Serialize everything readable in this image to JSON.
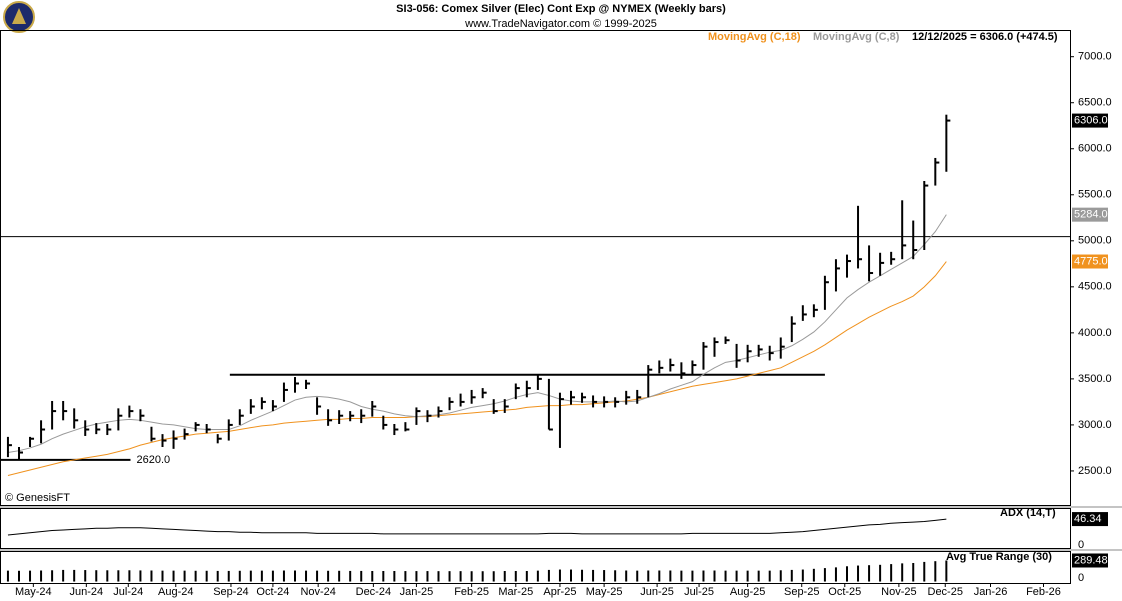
{
  "chart_data": {
    "type": "ohlc",
    "title": "SI3-056:  Comex Silver (Elec) Cont Exp @ NYMEX  (Weekly bars)",
    "subtitle": "www.TradeNavigator.com © 1999-2025",
    "legend_note": "12/12/2025 = 6306.0 (+474.5)",
    "source": "© GenesisFT",
    "x": [
      0,
      1,
      2,
      3,
      4,
      5,
      6,
      7,
      8,
      9,
      10,
      11,
      12,
      13,
      14,
      15,
      16,
      17,
      18,
      19,
      20,
      21,
      22,
      23,
      24,
      25,
      26,
      27,
      28,
      29,
      30,
      31,
      32,
      33,
      34,
      35,
      36,
      37,
      38,
      39,
      40,
      41,
      42,
      43,
      44,
      45,
      46,
      47,
      48,
      49,
      50,
      51,
      52,
      53,
      54,
      55,
      56,
      57,
      58,
      59,
      60,
      61,
      62,
      63,
      64,
      65,
      66,
      67,
      68,
      69,
      70,
      71,
      72,
      73,
      74,
      75,
      76,
      77,
      78,
      79,
      80,
      81,
      82,
      83,
      84,
      85
    ],
    "xlim": [
      -0.72,
      96.2
    ],
    "xticks": [
      {
        "value": 2.3,
        "label": "May-24"
      },
      {
        "value": 7.1,
        "label": "Jun-24"
      },
      {
        "value": 10.9,
        "label": "Jul-24"
      },
      {
        "value": 15.2,
        "label": "Aug-24"
      },
      {
        "value": 20.2,
        "label": "Sep-24"
      },
      {
        "value": 24.0,
        "label": "Oct-24"
      },
      {
        "value": 28.1,
        "label": "Nov-24"
      },
      {
        "value": 33.1,
        "label": "Dec-24"
      },
      {
        "value": 37.0,
        "label": "Jan-25"
      },
      {
        "value": 42.0,
        "label": "Feb-25"
      },
      {
        "value": 46.0,
        "label": "Mar-25"
      },
      {
        "value": 50.0,
        "label": "Apr-25"
      },
      {
        "value": 54.0,
        "label": "May-25"
      },
      {
        "value": 58.8,
        "label": "Jun-25"
      },
      {
        "value": 62.6,
        "label": "Jul-25"
      },
      {
        "value": 67.0,
        "label": "Aug-25"
      },
      {
        "value": 71.9,
        "label": "Sep-25"
      },
      {
        "value": 75.8,
        "label": "Oct-25"
      },
      {
        "value": 80.7,
        "label": "Nov-25"
      },
      {
        "value": 84.9,
        "label": "Dec-25"
      },
      {
        "value": 89.0,
        "label": "Jan-26"
      },
      {
        "value": 93.8,
        "label": "Feb-26"
      }
    ],
    "ylim": [
      2130,
      7290
    ],
    "yticks": [
      {
        "value": 2500,
        "label": "2500.0"
      },
      {
        "value": 3000,
        "label": "3000.0"
      },
      {
        "value": 3500,
        "label": "3500.0"
      },
      {
        "value": 4000,
        "label": "4000.0"
      },
      {
        "value": 4500,
        "label": "4500.0"
      },
      {
        "value": 5000,
        "label": "5000.0"
      },
      {
        "value": 5500,
        "label": "5500.0"
      },
      {
        "value": 6000,
        "label": "6000.0"
      },
      {
        "value": 6500,
        "label": "6500.0"
      },
      {
        "value": 7000,
        "label": "7000.0"
      }
    ],
    "price": {
      "color": "#000000",
      "tag": "6306.0",
      "high": [
        2870,
        2760,
        2870,
        3050,
        3260,
        3260,
        3180,
        3050,
        3020,
        3010,
        3180,
        3210,
        3170,
        2980,
        2900,
        2940,
        2960,
        3030,
        3010,
        2900,
        3060,
        3170,
        3280,
        3300,
        3270,
        3460,
        3520,
        3490,
        3300,
        3170,
        3160,
        3150,
        3170,
        3260,
        3100,
        3010,
        3030,
        3190,
        3160,
        3200,
        3300,
        3340,
        3380,
        3400,
        3280,
        3280,
        3450,
        3480,
        3550,
        3500,
        3350,
        3370,
        3350,
        3320,
        3310,
        3300,
        3370,
        3380,
        3650,
        3700,
        3720,
        3680,
        3700,
        3900,
        3950,
        3960,
        3880,
        3870,
        3870,
        3860,
        3950,
        4180,
        4300,
        4310,
        4620,
        4800,
        4850,
        5380,
        4950,
        4870,
        4880,
        5440,
        5220,
        5650,
        5900,
        6370
      ],
      "low": [
        2650,
        2620,
        2760,
        2800,
        2950,
        3050,
        2960,
        2880,
        2900,
        2890,
        2940,
        3080,
        3040,
        2820,
        2760,
        2740,
        2840,
        2930,
        2910,
        2800,
        2830,
        3000,
        3120,
        3170,
        3150,
        3250,
        3350,
        3390,
        3110,
        2990,
        3010,
        3040,
        3020,
        3090,
        2950,
        2890,
        2930,
        3000,
        3030,
        3080,
        3160,
        3200,
        3230,
        3290,
        3120,
        3130,
        3280,
        3300,
        3380,
        2950,
        2750,
        3220,
        3240,
        3190,
        3190,
        3190,
        3220,
        3230,
        3300,
        3560,
        3580,
        3500,
        3540,
        3600,
        3740,
        3880,
        3620,
        3680,
        3740,
        3700,
        3720,
        3900,
        4130,
        4170,
        4250,
        4450,
        4600,
        4700,
        4560,
        4620,
        4740,
        4800,
        4800,
        4900,
        5600,
        5750
      ],
      "close": [
        2780,
        2700,
        2850,
        2950,
        3150,
        3150,
        3050,
        2950,
        2950,
        2950,
        3100,
        3150,
        3100,
        2850,
        2830,
        2850,
        2900,
        3000,
        2950,
        2850,
        3000,
        3100,
        3200,
        3250,
        3200,
        3380,
        3450,
        3450,
        3200,
        3050,
        3100,
        3100,
        3100,
        3200,
        3000,
        2950,
        2950,
        3150,
        3100,
        3150,
        3250,
        3250,
        3300,
        3350,
        3150,
        3200,
        3400,
        3400,
        3500,
        2950,
        3280,
        3300,
        3300,
        3250,
        3250,
        3250,
        3300,
        3300,
        3600,
        3620,
        3650,
        3560,
        3650,
        3850,
        3900,
        3920,
        3700,
        3800,
        3820,
        3780,
        3850,
        4100,
        4200,
        4250,
        4550,
        4700,
        4780,
        4800,
        4650,
        4760,
        4800,
        4950,
        4900,
        5600,
        5850,
        6306
      ]
    },
    "series": [
      {
        "name": "MovingAvg (C,18)",
        "color": "#f0921e",
        "tag": "4775.0",
        "values": [
          2450,
          2480,
          2510,
          2540,
          2570,
          2600,
          2620,
          2640,
          2660,
          2680,
          2710,
          2740,
          2780,
          2810,
          2840,
          2860,
          2880,
          2900,
          2910,
          2920,
          2930,
          2950,
          2970,
          2990,
          3000,
          3020,
          3030,
          3040,
          3050,
          3060,
          3060,
          3070,
          3070,
          3080,
          3080,
          3080,
          3080,
          3090,
          3090,
          3100,
          3110,
          3120,
          3130,
          3140,
          3150,
          3160,
          3170,
          3190,
          3200,
          3210,
          3210,
          3220,
          3220,
          3230,
          3240,
          3250,
          3260,
          3280,
          3300,
          3330,
          3360,
          3390,
          3420,
          3440,
          3460,
          3480,
          3500,
          3530,
          3560,
          3590,
          3620,
          3680,
          3740,
          3800,
          3870,
          3950,
          4030,
          4100,
          4170,
          4230,
          4290,
          4340,
          4400,
          4500,
          4620,
          4775
        ]
      },
      {
        "name": "MovingAvg (C,8)",
        "color": "#9a9a9a",
        "tag": "5284.0",
        "values": [
          2700,
          2720,
          2750,
          2790,
          2850,
          2900,
          2940,
          2980,
          3010,
          3030,
          3050,
          3060,
          3050,
          3030,
          3010,
          3000,
          2980,
          2960,
          2950,
          2950,
          2950,
          2990,
          3050,
          3100,
          3150,
          3210,
          3270,
          3300,
          3310,
          3300,
          3280,
          3250,
          3200,
          3170,
          3150,
          3120,
          3100,
          3090,
          3100,
          3110,
          3130,
          3160,
          3190,
          3210,
          3230,
          3260,
          3300,
          3330,
          3350,
          3320,
          3280,
          3260,
          3250,
          3250,
          3250,
          3260,
          3250,
          3260,
          3300,
          3340,
          3390,
          3430,
          3470,
          3550,
          3620,
          3680,
          3700,
          3730,
          3760,
          3790,
          3810,
          3860,
          3930,
          4010,
          4120,
          4250,
          4380,
          4470,
          4550,
          4620,
          4690,
          4760,
          4830,
          4960,
          5100,
          5284
        ]
      }
    ],
    "hlines": [
      {
        "y": 5045,
        "x": [
          -0.72,
          96.2
        ]
      },
      {
        "y": 3545,
        "x": [
          20.1,
          74.0
        ]
      },
      {
        "y": 2620,
        "x": [
          -0.72,
          11.1
        ],
        "label": "2620.0"
      }
    ],
    "adx": {
      "title": "ADX (14,T)",
      "color": "#000000",
      "ylim": [
        -5,
        66
      ],
      "yticks": [
        0
      ],
      "values": [
        18,
        20,
        22,
        24,
        26,
        27,
        28,
        29,
        30,
        30,
        31,
        31,
        31,
        30,
        29,
        28,
        27,
        26,
        25,
        24,
        24,
        23,
        23,
        22,
        22,
        22,
        22,
        22,
        21,
        21,
        21,
        21,
        21,
        21,
        20,
        20,
        20,
        20,
        20,
        20,
        20,
        20,
        20,
        20,
        20,
        20,
        20,
        20,
        20,
        21,
        21,
        21,
        20,
        20,
        20,
        20,
        20,
        20,
        20,
        20,
        20,
        20,
        21,
        21,
        21,
        21,
        21,
        21,
        21,
        21,
        22,
        23,
        24,
        26,
        28,
        30,
        32,
        34,
        36,
        37,
        39,
        40,
        41,
        42,
        44,
        46.34
      ]
    },
    "atr": {
      "title": "Avg True Range (30)",
      "color": "#000000",
      "ylim": [
        -20,
        420
      ],
      "yticks": [
        0
      ],
      "values": [
        150,
        148,
        150,
        152,
        155,
        160,
        160,
        158,
        156,
        155,
        155,
        155,
        153,
        152,
        150,
        150,
        150,
        148,
        148,
        146,
        146,
        148,
        150,
        150,
        150,
        152,
        152,
        150,
        150,
        148,
        148,
        146,
        146,
        145,
        145,
        145,
        144,
        144,
        144,
        143,
        143,
        143,
        142,
        142,
        142,
        145,
        145,
        145,
        150,
        160,
        165,
        165,
        162,
        160,
        158,
        155,
        152,
        150,
        152,
        152,
        152,
        150,
        150,
        152,
        152,
        150,
        150,
        150,
        150,
        150,
        155,
        160,
        165,
        175,
        185,
        195,
        210,
        220,
        225,
        230,
        240,
        250,
        255,
        270,
        280,
        289.48
      ]
    }
  }
}
